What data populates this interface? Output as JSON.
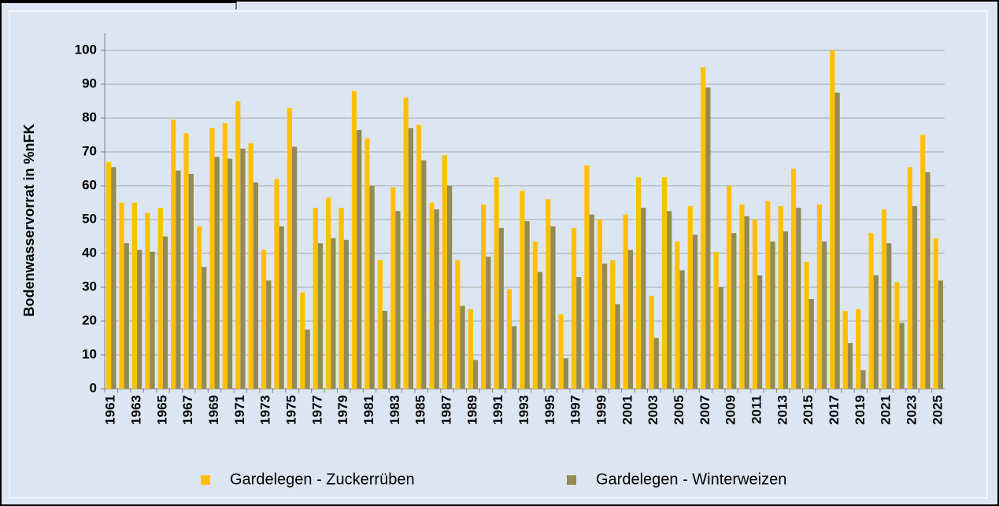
{
  "chart_data": {
    "type": "bar",
    "y_label": "Bodenwasservorrat in %nFK",
    "categories": [
      "1961",
      null,
      "1963",
      null,
      "1965",
      null,
      "1967",
      null,
      "1969",
      null,
      "1971",
      null,
      "1973",
      null,
      "1975",
      null,
      "1977",
      null,
      "1979",
      null,
      "1981",
      null,
      "1983",
      null,
      "1985",
      null,
      "1987",
      null,
      "1989",
      null,
      "1991",
      null,
      "1993",
      null,
      "1995",
      null,
      "1997",
      null,
      "1999",
      null,
      "2001",
      null,
      "2003",
      null,
      "2005",
      null,
      "2007",
      null,
      "2009",
      null,
      "2011",
      null,
      "2013",
      null,
      "2015",
      null,
      "2017",
      null,
      "2019",
      null,
      "2021",
      null,
      "2023",
      null,
      "2025"
    ],
    "series": [
      {
        "name": "Gardelegen - Zuckerrüben",
        "color": "#ffc000",
        "values": [
          67,
          55,
          55,
          52,
          53.5,
          79.5,
          75.5,
          48,
          77,
          78.5,
          85,
          72.5,
          41,
          62,
          83,
          28.5,
          53.5,
          56.5,
          53.5,
          88,
          74,
          38,
          59.5,
          86,
          78,
          55,
          69,
          38,
          23.5,
          54.5,
          62.5,
          29.5,
          58.5,
          43.5,
          56,
          22,
          47.5,
          66,
          50,
          38,
          51.5,
          62.5,
          27.5,
          62.5,
          43.5,
          54,
          95,
          40.5,
          60,
          54.5,
          50,
          55.5,
          54,
          65,
          37.5,
          54.5,
          100,
          23,
          23.5,
          46,
          53,
          31.5,
          65.5,
          75,
          44.5
        ]
      },
      {
        "name": "Gardelegen - Winterweizen",
        "color": "#948a54",
        "values": [
          65.5,
          43,
          41,
          40.5,
          45,
          64.5,
          63.5,
          36,
          68.5,
          68,
          71,
          61,
          32,
          48,
          71.5,
          17.5,
          43,
          44.5,
          44,
          76.5,
          60,
          23,
          52.5,
          77,
          67.5,
          53,
          60,
          24.5,
          8.5,
          39,
          47.5,
          18.5,
          49.5,
          34.5,
          48,
          9,
          33,
          51.5,
          37,
          25,
          41,
          53.5,
          15,
          52.5,
          35,
          45.5,
          89,
          30,
          46,
          51,
          33.5,
          43.5,
          46.5,
          53.5,
          26.5,
          43.5,
          87.5,
          13.5,
          5.5,
          33.5,
          43,
          19.5,
          54,
          64,
          32
        ]
      }
    ],
    "ylim": [
      0,
      100
    ],
    "yticks": [
      0,
      10,
      20,
      30,
      40,
      50,
      60,
      70,
      80,
      90,
      100
    ],
    "grid": true
  }
}
